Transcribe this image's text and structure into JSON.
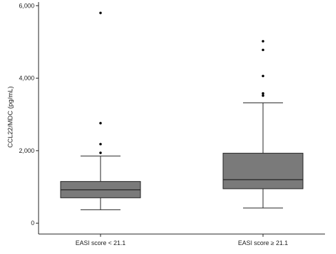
{
  "chart_data": {
    "type": "box",
    "title": "",
    "xlabel": "",
    "ylabel": "CCL22/MDC (pg/mL)",
    "ylim": [
      -300,
      6100
    ],
    "yticks": [
      0,
      2000,
      4000,
      6000
    ],
    "ytick_labels": [
      "0",
      "2,000",
      "4,000",
      "6,000"
    ],
    "categories": [
      "EASI score < 21.1",
      "EASI score ≥ 21.1"
    ],
    "box_color": "#7a7a7a",
    "outlier_color": "#000000",
    "grid": false,
    "boxes": [
      {
        "label": "EASI score < 21.1",
        "whisker_low": 370,
        "q1": 700,
        "median": 920,
        "q3": 1150,
        "whisker_high": 1850,
        "outliers": [
          1940,
          2180,
          2760,
          5800
        ]
      },
      {
        "label": "EASI score ≥ 21.1",
        "whisker_low": 420,
        "q1": 950,
        "median": 1200,
        "q3": 1930,
        "whisker_high": 3320,
        "outliers": [
          3520,
          3580,
          4060,
          4780,
          5020
        ]
      }
    ]
  }
}
